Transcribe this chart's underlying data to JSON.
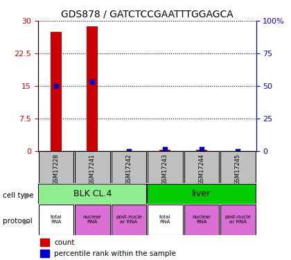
{
  "title": "GDS878 / GATCTCCGAATTTGGAGCA",
  "samples": [
    "GSM17228",
    "GSM17241",
    "GSM17242",
    "GSM17243",
    "GSM17244",
    "GSM17245"
  ],
  "counts": [
    27.5,
    28.8,
    0.0,
    0.3,
    0.3,
    0.0
  ],
  "percentiles": [
    50.0,
    53.0,
    0.0,
    1.5,
    1.5,
    0.0
  ],
  "ylim_left": [
    0,
    30
  ],
  "ylim_right": [
    0,
    100
  ],
  "yticks_left": [
    0,
    7.5,
    15,
    22.5,
    30
  ],
  "ytick_labels_left": [
    "0",
    "7.5",
    "15",
    "22.5",
    "30"
  ],
  "yticks_right": [
    0,
    25,
    50,
    75,
    100
  ],
  "ytick_labels_right": [
    "0",
    "25",
    "50",
    "75",
    "100%"
  ],
  "cell_type_labels": [
    [
      "BLK CL.4",
      0,
      3
    ],
    [
      "liver",
      3,
      6
    ]
  ],
  "cell_type_colors": [
    "#90EE90",
    "#00CC00"
  ],
  "protocol_labels": [
    "total\nRNA",
    "nuclear\nRNA",
    "post-nucle\nar RNA",
    "total\nRNA",
    "nuclear\nRNA",
    "post-nucle\nar RNA"
  ],
  "protocol_colors": [
    "#ffffff",
    "#DA70D6",
    "#DA70D6",
    "#ffffff",
    "#DA70D6",
    "#DA70D6"
  ],
  "bar_color": "#CC0000",
  "percentile_color": "#0000CC",
  "dotted_line_color": "#000000",
  "left_axis_color": "#CC0000",
  "right_axis_color": "#0000CC",
  "sample_box_color": "#C0C0C0",
  "legend_count_color": "#CC0000",
  "legend_percentile_color": "#0000CC"
}
